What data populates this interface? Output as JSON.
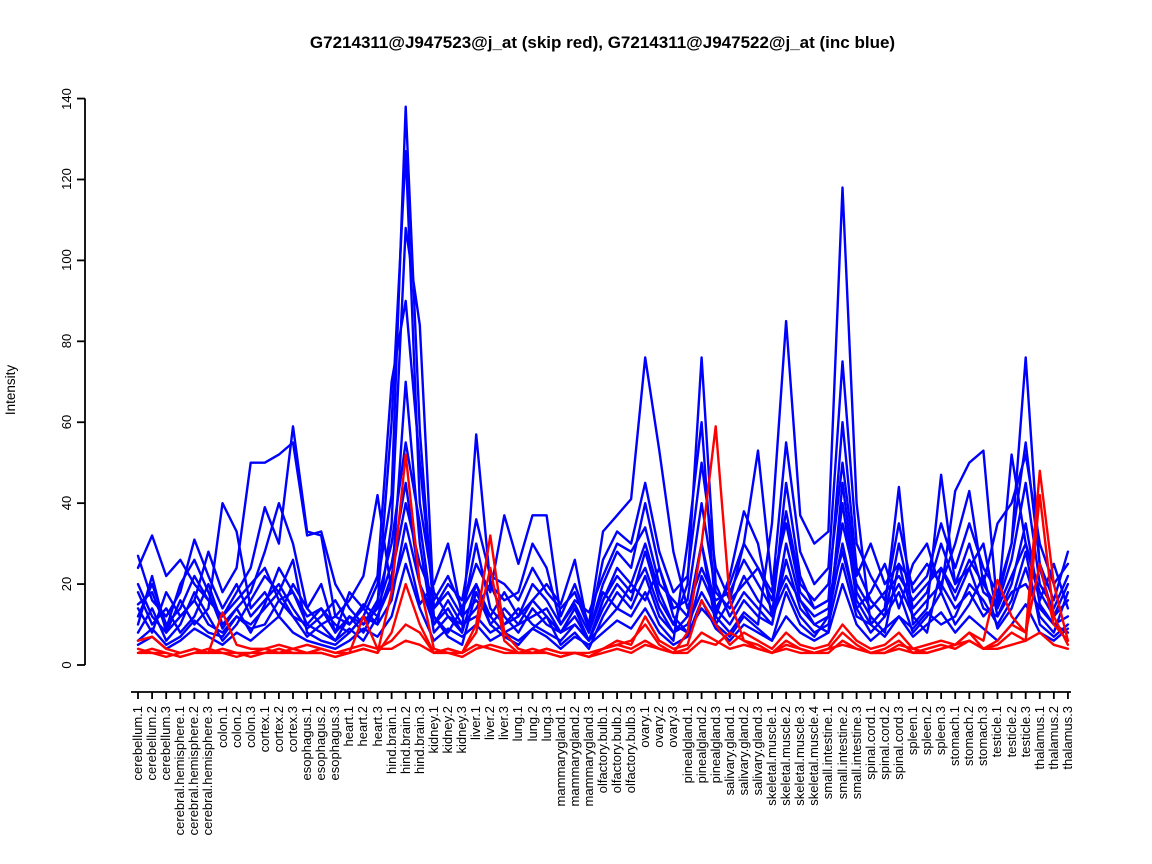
{
  "chart_data": {
    "type": "line",
    "title": "G7214311@J947523@j_at (skip red), G7214311@J947522@j_at (inc blue)",
    "ylabel": "Intensity",
    "ylim": [
      0,
      140
    ],
    "y_ticks": [
      0,
      20,
      40,
      60,
      80,
      100,
      120,
      140
    ],
    "grid": false,
    "legend_position": "none",
    "groups": [
      {
        "probeset": "G7214311@J947523@j_at",
        "tag": "skip",
        "color": "#ff0000"
      },
      {
        "probeset": "G7214311@J947522@j_at",
        "tag": "inc",
        "color": "#0000ff"
      }
    ],
    "categories": [
      "cerebellum.1",
      "cerebellum.2",
      "cerebellum.3",
      "cerebral.hemisphere.1",
      "cerebral.hemisphere.2",
      "cerebral.hemisphere.3",
      "colon.1",
      "colon.2",
      "colon.3",
      "cortex.1",
      "cortex.2",
      "cortex.3",
      "esophagus.1",
      "esophagus.2",
      "esophagus.3",
      "heart.1",
      "heart.2",
      "heart.3",
      "hind.brain.1",
      "hind.brain.2",
      "hind.brain.3",
      "kidney.1",
      "kidney.2",
      "kidney.3",
      "liver.1",
      "liver.2",
      "liver.3",
      "lung.1",
      "lung.2",
      "lung.3",
      "mammarygland.1",
      "mammarygland.2",
      "mammarygland.3",
      "olfactory.bulb.1",
      "olfactory.bulb.2",
      "olfactory.bulb.3",
      "ovary.1",
      "ovary.2",
      "ovary.3",
      "pinealgland.1",
      "pinealgland.2",
      "pinealgland.3",
      "salivary.gland.1",
      "salivary.gland.2",
      "salivary.gland.3",
      "skeletal.muscle.1",
      "skeletal.muscle.2",
      "skeletal.muscle.3",
      "skeletal.muscle.4",
      "small.intestine.1",
      "small.intestine.2",
      "small.intestine.3",
      "spinal.cord.1",
      "spinal.cord.2",
      "spinal.cord.3",
      "spleen.1",
      "spleen.2",
      "spleen.3",
      "stomach.1",
      "stomach.2",
      "stomach.3",
      "testicle.1",
      "testicle.2",
      "testicle.3",
      "thalamus.1",
      "thalamus.2",
      "thalamus.3"
    ],
    "series": [
      {
        "name": "inc-1",
        "group": "inc",
        "color": "#0000ff",
        "values": [
          8,
          14,
          6,
          10,
          18,
          12,
          6,
          10,
          16,
          22,
          18,
          26,
          8,
          6,
          5,
          8,
          12,
          20,
          42,
          138,
          58,
          12,
          7,
          5,
          18,
          10,
          7,
          5,
          9,
          12,
          5,
          8,
          4,
          12,
          18,
          14,
          22,
          12,
          8,
          12,
          30,
          10,
          7,
          12,
          9,
          6,
          18,
          10,
          7,
          12,
          30,
          14,
          8,
          12,
          18,
          8,
          12,
          18,
          10,
          15,
          22,
          9,
          14,
          24,
          12,
          8,
          18
        ]
      },
      {
        "name": "inc-2",
        "group": "inc",
        "color": "#0000ff",
        "values": [
          18,
          10,
          14,
          8,
          12,
          20,
          10,
          14,
          8,
          15,
          24,
          18,
          10,
          14,
          8,
          12,
          8,
          15,
          60,
          127,
          40,
          18,
          12,
          8,
          57,
          20,
          12,
          8,
          14,
          10,
          8,
          12,
          6,
          16,
          24,
          20,
          30,
          18,
          10,
          8,
          22,
          14,
          10,
          16,
          12,
          10,
          30,
          16,
          10,
          8,
          45,
          18,
          12,
          8,
          25,
          12,
          8,
          24,
          16,
          24,
          14,
          12,
          20,
          35,
          15,
          10,
          12
        ]
      },
      {
        "name": "inc-3",
        "group": "inc",
        "color": "#0000ff",
        "values": [
          12,
          20,
          10,
          14,
          22,
          16,
          12,
          18,
          24,
          39,
          30,
          59,
          33,
          32,
          12,
          10,
          14,
          10,
          35,
          108,
          84,
          14,
          18,
          12,
          30,
          14,
          10,
          12,
          20,
          16,
          10,
          15,
          8,
          20,
          28,
          24,
          40,
          24,
          14,
          16,
          40,
          18,
          14,
          22,
          16,
          12,
          45,
          22,
          14,
          16,
          60,
          24,
          16,
          12,
          30,
          14,
          18,
          30,
          20,
          30,
          18,
          15,
          26,
          45,
          20,
          14,
          22
        ]
      },
      {
        "name": "inc-4",
        "group": "inc",
        "color": "#0000ff",
        "values": [
          6,
          9,
          5,
          7,
          11,
          8,
          7,
          12,
          9,
          10,
          16,
          12,
          7,
          10,
          6,
          9,
          6,
          12,
          20,
          70,
          30,
          8,
          12,
          10,
          12,
          8,
          10,
          14,
          10,
          8,
          6,
          10,
          6,
          10,
          14,
          12,
          18,
          10,
          6,
          30,
          60,
          12,
          8,
          13,
          10,
          35,
          85,
          37,
          30,
          33,
          118,
          40,
          10,
          7,
          12,
          9,
          13,
          10,
          12,
          20,
          16,
          10,
          16,
          28,
          10,
          7,
          10
        ]
      },
      {
        "name": "inc-5",
        "group": "inc",
        "color": "#0000ff",
        "values": [
          27,
          16,
          12,
          18,
          31,
          22,
          14,
          20,
          12,
          16,
          20,
          14,
          9,
          12,
          16,
          10,
          15,
          12,
          22,
          40,
          25,
          16,
          22,
          14,
          25,
          18,
          37,
          25,
          37,
          37,
          12,
          20,
          10,
          33,
          37,
          41,
          76,
          53,
          28,
          14,
          24,
          16,
          18,
          26,
          20,
          14,
          22,
          16,
          12,
          14,
          35,
          20,
          14,
          18,
          22,
          16,
          20,
          24,
          18,
          26,
          20,
          14,
          22,
          30,
          18,
          12,
          16
        ]
      },
      {
        "name": "inc-6",
        "group": "inc",
        "color": "#0000ff",
        "values": [
          10,
          22,
          8,
          12,
          16,
          10,
          8,
          12,
          10,
          14,
          18,
          12,
          10,
          8,
          6,
          12,
          10,
          16,
          30,
          55,
          35,
          10,
          14,
          8,
          20,
          12,
          8,
          10,
          16,
          12,
          8,
          14,
          6,
          14,
          20,
          16,
          28,
          16,
          10,
          20,
          76,
          20,
          12,
          18,
          14,
          10,
          26,
          14,
          10,
          12,
          40,
          16,
          10,
          14,
          20,
          12,
          16,
          20,
          14,
          18,
          12,
          16,
          30,
          76,
          24,
          12,
          20
        ]
      },
      {
        "name": "inc-7",
        "group": "inc",
        "color": "#0000ff",
        "values": [
          14,
          8,
          18,
          12,
          16,
          28,
          18,
          24,
          50,
          50,
          52,
          55,
          32,
          33,
          20,
          14,
          10,
          14,
          25,
          45,
          20,
          12,
          8,
          14,
          20,
          10,
          14,
          10,
          12,
          14,
          8,
          10,
          6,
          16,
          22,
          18,
          24,
          14,
          8,
          10,
          18,
          12,
          22,
          38,
          30,
          12,
          20,
          12,
          8,
          10,
          25,
          12,
          10,
          14,
          44,
          10,
          14,
          47,
          20,
          24,
          30,
          12,
          18,
          20,
          14,
          10,
          8
        ]
      },
      {
        "name": "inc-8",
        "group": "inc",
        "color": "#0000ff",
        "values": [
          20,
          12,
          8,
          16,
          10,
          14,
          40,
          33,
          14,
          18,
          12,
          20,
          14,
          10,
          12,
          16,
          22,
          42,
          18,
          30,
          15,
          20,
          30,
          12,
          16,
          12,
          18,
          12,
          16,
          20,
          15,
          26,
          8,
          18,
          14,
          20,
          16,
          24,
          12,
          8,
          14,
          10,
          16,
          30,
          53,
          20,
          35,
          18,
          14,
          16,
          28,
          14,
          18,
          25,
          14,
          25,
          30,
          18,
          43,
          50,
          53,
          14,
          52,
          30,
          16,
          25,
          14
        ]
      },
      {
        "name": "inc-9",
        "group": "inc",
        "color": "#0000ff",
        "values": [
          24,
          32,
          22,
          26,
          20,
          16,
          12,
          16,
          20,
          24,
          16,
          18,
          12,
          14,
          10,
          8,
          12,
          10,
          16,
          35,
          20,
          10,
          16,
          10,
          14,
          20,
          16,
          18,
          30,
          24,
          10,
          16,
          13,
          22,
          30,
          28,
          34,
          20,
          16,
          12,
          30,
          14,
          20,
          30,
          24,
          16,
          38,
          20,
          16,
          20,
          50,
          22,
          30,
          20,
          25,
          20,
          25,
          20,
          30,
          43,
          20,
          35,
          40,
          52,
          30,
          20,
          25
        ]
      },
      {
        "name": "inc-10",
        "group": "inc",
        "color": "#0000ff",
        "values": [
          5,
          7,
          4,
          6,
          9,
          7,
          5,
          8,
          6,
          9,
          12,
          8,
          6,
          5,
          4,
          6,
          9,
          7,
          12,
          25,
          14,
          6,
          9,
          7,
          10,
          6,
          8,
          6,
          9,
          7,
          4,
          7,
          5,
          8,
          11,
          9,
          14,
          8,
          5,
          7,
          16,
          9,
          6,
          10,
          8,
          6,
          12,
          8,
          6,
          8,
          20,
          10,
          6,
          9,
          12,
          7,
          10,
          13,
          8,
          12,
          9,
          6,
          10,
          15,
          8,
          6,
          9
        ]
      },
      {
        "name": "inc-11",
        "group": "inc",
        "color": "#0000ff",
        "values": [
          15,
          18,
          9,
          20,
          26,
          18,
          9,
          14,
          18,
          28,
          40,
          30,
          14,
          20,
          8,
          18,
          14,
          22,
          70,
          90,
          50,
          14,
          20,
          16,
          36,
          22,
          20,
          16,
          24,
          18,
          14,
          18,
          9,
          26,
          33,
          30,
          45,
          28,
          18,
          22,
          50,
          24,
          16,
          20,
          24,
          18,
          55,
          28,
          20,
          24,
          75,
          30,
          22,
          16,
          35,
          18,
          22,
          35,
          24,
          35,
          24,
          18,
          30,
          55,
          25,
          16,
          28
        ]
      },
      {
        "name": "skip-1",
        "group": "skip",
        "color": "#ff0000",
        "values": [
          3,
          3,
          2,
          3,
          4,
          3,
          3,
          2,
          3,
          4,
          3,
          3,
          3,
          3,
          2,
          3,
          4,
          3,
          18,
          52,
          20,
          4,
          3,
          3,
          8,
          24,
          6,
          3,
          3,
          4,
          3,
          3,
          2,
          4,
          5,
          4,
          6,
          4,
          3,
          4,
          8,
          6,
          4,
          5,
          4,
          3,
          6,
          4,
          3,
          4,
          8,
          5,
          3,
          4,
          6,
          3,
          4,
          5,
          4,
          6,
          4,
          5,
          8,
          6,
          42,
          12,
          5
        ]
      },
      {
        "name": "skip-2",
        "group": "skip",
        "color": "#ff0000",
        "values": [
          4,
          3,
          3,
          2,
          3,
          4,
          3,
          3,
          2,
          3,
          4,
          3,
          3,
          4,
          3,
          3,
          12,
          4,
          6,
          10,
          8,
          3,
          4,
          3,
          5,
          4,
          3,
          3,
          4,
          3,
          2,
          3,
          3,
          4,
          5,
          6,
          10,
          5,
          3,
          8,
          30,
          59,
          16,
          6,
          4,
          3,
          5,
          4,
          3,
          3,
          6,
          4,
          3,
          3,
          5,
          4,
          3,
          4,
          5,
          8,
          4,
          6,
          10,
          8,
          48,
          20,
          6
        ]
      },
      {
        "name": "skip-3",
        "group": "skip",
        "color": "#ff0000",
        "values": [
          6,
          7,
          4,
          3,
          4,
          3,
          13,
          5,
          4,
          4,
          5,
          4,
          3,
          3,
          2,
          3,
          4,
          3,
          8,
          20,
          10,
          3,
          4,
          3,
          10,
          32,
          8,
          4,
          3,
          4,
          3,
          3,
          2,
          4,
          6,
          5,
          12,
          6,
          4,
          5,
          16,
          10,
          5,
          8,
          6,
          4,
          8,
          5,
          4,
          5,
          10,
          6,
          4,
          5,
          8,
          4,
          5,
          6,
          5,
          8,
          6,
          21,
          12,
          8,
          25,
          10,
          6
        ]
      },
      {
        "name": "skip-4",
        "group": "skip",
        "color": "#ff0000",
        "values": [
          3,
          4,
          3,
          2,
          3,
          3,
          4,
          3,
          3,
          3,
          3,
          4,
          5,
          4,
          3,
          4,
          5,
          4,
          4,
          6,
          5,
          3,
          3,
          2,
          4,
          5,
          4,
          3,
          3,
          3,
          2,
          3,
          2,
          3,
          4,
          3,
          5,
          4,
          3,
          3,
          6,
          5,
          8,
          6,
          5,
          3,
          4,
          3,
          3,
          4,
          5,
          4,
          3,
          3,
          4,
          3,
          3,
          4,
          5,
          6,
          4,
          4,
          5,
          6,
          8,
          5,
          4
        ]
      }
    ]
  },
  "colors": {
    "blue": "#0000ff",
    "red": "#ff0000",
    "axis": "#000000",
    "background": "#ffffff"
  }
}
